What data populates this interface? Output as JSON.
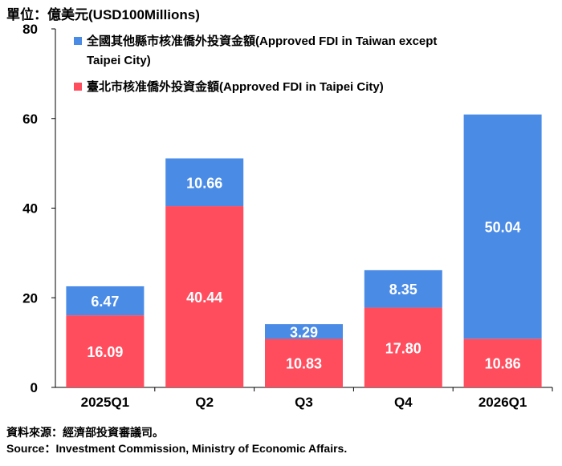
{
  "unit_label": "單位：億美元(USD100Millions)",
  "source": {
    "zh": "資料來源：經濟部投資審議司。",
    "en": "Source：Investment Commission, Ministry of Economic Affairs."
  },
  "chart_data": {
    "type": "bar",
    "stacked": true,
    "categories": [
      "2025Q1",
      "Q2",
      "Q3",
      "Q4",
      "2026Q1"
    ],
    "series": [
      {
        "name": "臺北市核准僑外投資金額(Approved FDI in Taipei City)",
        "values": [
          16.09,
          40.44,
          10.83,
          17.8,
          10.86
        ],
        "labels": [
          "16.09",
          "40.44",
          "10.83",
          "17.80",
          "10.86"
        ],
        "color": "#ff4d5e"
      },
      {
        "name": "全國其他縣市核准僑外投資金額(Approved FDI in Taiwan except Taipei City)",
        "values": [
          6.47,
          10.66,
          3.29,
          8.35,
          50.04
        ],
        "labels": [
          "6.47",
          "10.66",
          "3.29",
          "8.35",
          "50.04"
        ],
        "color": "#4a8be6"
      }
    ],
    "ylim": [
      0,
      80
    ],
    "yticks": [
      "0",
      "20",
      "40",
      "60",
      "80"
    ],
    "legend": {
      "placement": "top-right",
      "entries": [
        {
          "lines": [
            "全國其他縣市核准僑外投資金額(Approved FDI in Taiwan except",
            "Taipei City)"
          ],
          "color": "#4a8be6"
        },
        {
          "lines": [
            "臺北市核准僑外投資金額(Approved FDI in Taipei City)"
          ],
          "color": "#ff4d5e"
        }
      ]
    }
  }
}
